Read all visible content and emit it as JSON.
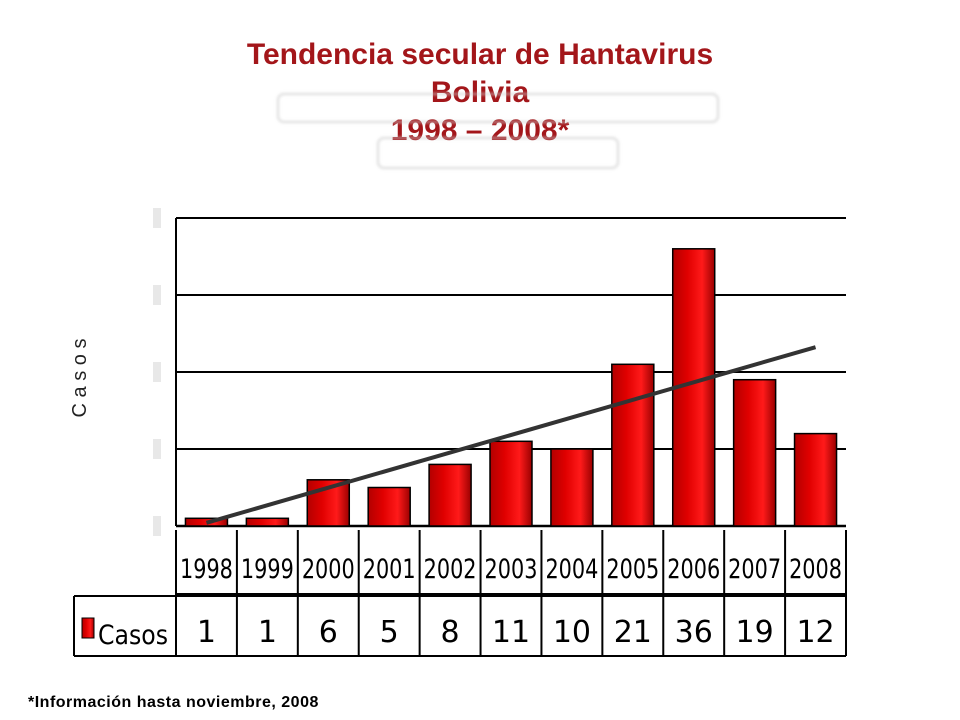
{
  "title": {
    "line1": "Tendencia secular de Hantavirus",
    "line2": "Bolivia",
    "line3": "1998 – 2008*"
  },
  "footnote": "*Información hasta noviembre, 2008",
  "chart_data": {
    "type": "bar",
    "categories": [
      "1998",
      "1999",
      "2000",
      "2001",
      "2002",
      "2003",
      "2004",
      "2005",
      "2006",
      "2007",
      "2008"
    ],
    "series": [
      {
        "name": "Casos",
        "values": [
          1,
          1,
          6,
          5,
          8,
          11,
          10,
          21,
          36,
          19,
          12
        ],
        "color": "#e00000"
      }
    ],
    "trendline": {
      "type": "linear",
      "color": "#333333"
    },
    "ylabel": "C a s o s",
    "ylim": [
      0,
      40
    ],
    "y_gridlines": [
      0,
      10,
      20,
      30,
      40
    ],
    "grid": true,
    "data_table": true,
    "legend": "data-table"
  }
}
